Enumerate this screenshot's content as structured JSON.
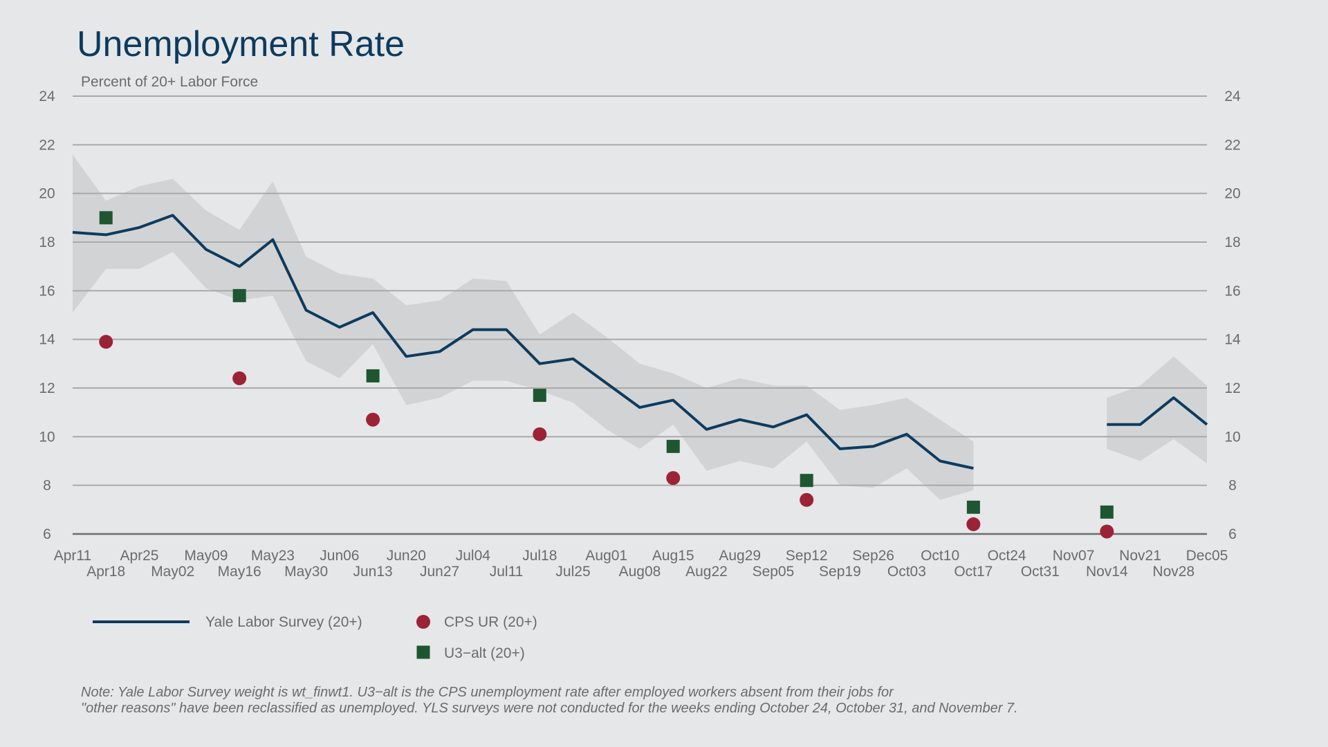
{
  "chart_data": {
    "type": "line",
    "title": "Unemployment Rate",
    "subtitle": "Percent of 20+ Labor Force",
    "ylim": [
      6,
      24
    ],
    "yticks": [
      6,
      8,
      10,
      12,
      14,
      16,
      18,
      20,
      22,
      24
    ],
    "grid": true,
    "x_dates": [
      "2020-04-11",
      "2020-04-18",
      "2020-04-25",
      "2020-05-02",
      "2020-05-09",
      "2020-05-16",
      "2020-05-23",
      "2020-05-30",
      "2020-06-06",
      "2020-06-13",
      "2020-06-20",
      "2020-06-27",
      "2020-07-04",
      "2020-07-11",
      "2020-07-18",
      "2020-07-25",
      "2020-08-01",
      "2020-08-08",
      "2020-08-15",
      "2020-08-22",
      "2020-08-29",
      "2020-09-05",
      "2020-09-12",
      "2020-09-19",
      "2020-09-26",
      "2020-10-03",
      "2020-10-10",
      "2020-10-17",
      "2020-10-24",
      "2020-10-31",
      "2020-11-07",
      "2020-11-14",
      "2020-11-21",
      "2020-11-28",
      "2020-12-05"
    ],
    "x_tick_labels": [
      "Apr11",
      "Apr18",
      "Apr25",
      "May02",
      "May09",
      "May16",
      "May23",
      "May30",
      "Jun06",
      "Jun13",
      "Jun20",
      "Jun27",
      "Jul04",
      "Jul11",
      "Jul18",
      "Jul25",
      "Aug01",
      "Aug08",
      "Aug15",
      "Aug22",
      "Aug29",
      "Sep05",
      "Sep12",
      "Sep19",
      "Sep26",
      "Oct03",
      "Oct10",
      "Oct17",
      "Oct24",
      "Oct31",
      "Nov07",
      "Nov14",
      "Nov21",
      "Nov28",
      "Dec05"
    ],
    "series": [
      {
        "name": "Yale Labor Survey (20+)",
        "color": "#0d3b5e",
        "marker": "line",
        "values": [
          18.4,
          18.3,
          18.6,
          19.1,
          17.7,
          17.0,
          18.1,
          15.2,
          14.5,
          15.1,
          13.3,
          13.5,
          14.4,
          14.4,
          13.0,
          13.2,
          12.2,
          11.2,
          11.5,
          10.3,
          10.7,
          10.4,
          10.9,
          9.5,
          9.6,
          10.1,
          9.0,
          8.7,
          null,
          null,
          null,
          10.5,
          10.5,
          11.6,
          10.5
        ],
        "band_upper": [
          21.6,
          19.7,
          20.3,
          20.6,
          19.3,
          18.5,
          20.5,
          17.4,
          16.7,
          16.5,
          15.4,
          15.6,
          16.5,
          16.4,
          14.2,
          15.1,
          14.1,
          13.0,
          12.6,
          12.0,
          12.4,
          12.1,
          12.1,
          11.1,
          11.3,
          11.6,
          10.7,
          9.8,
          null,
          null,
          null,
          11.6,
          12.1,
          13.3,
          12.1
        ],
        "band_lower": [
          15.1,
          16.9,
          16.9,
          17.6,
          16.1,
          15.6,
          15.8,
          13.1,
          12.4,
          13.8,
          11.3,
          11.6,
          12.3,
          12.3,
          11.9,
          11.4,
          10.3,
          9.5,
          10.5,
          8.6,
          9.0,
          8.7,
          9.8,
          8.0,
          7.9,
          8.7,
          7.4,
          7.8,
          null,
          null,
          null,
          9.5,
          9.0,
          9.9,
          8.9
        ]
      },
      {
        "name": "CPS UR (20+)",
        "color": "#9b2335",
        "marker": "circle",
        "points": [
          {
            "x": "2020-04-18",
            "y": 13.9
          },
          {
            "x": "2020-05-16",
            "y": 12.4
          },
          {
            "x": "2020-06-13",
            "y": 10.7
          },
          {
            "x": "2020-07-18",
            "y": 10.1
          },
          {
            "x": "2020-08-15",
            "y": 8.3
          },
          {
            "x": "2020-09-12",
            "y": 7.4
          },
          {
            "x": "2020-10-17",
            "y": 6.4
          },
          {
            "x": "2020-11-14",
            "y": 6.1
          }
        ]
      },
      {
        "name": "U3−alt (20+)",
        "color": "#1e5631",
        "marker": "square",
        "points": [
          {
            "x": "2020-04-18",
            "y": 19.0
          },
          {
            "x": "2020-05-16",
            "y": 15.8
          },
          {
            "x": "2020-06-13",
            "y": 12.5
          },
          {
            "x": "2020-07-18",
            "y": 11.7
          },
          {
            "x": "2020-08-15",
            "y": 9.6
          },
          {
            "x": "2020-09-12",
            "y": 8.2
          },
          {
            "x": "2020-10-17",
            "y": 7.1
          },
          {
            "x": "2020-11-14",
            "y": 6.9
          }
        ]
      }
    ],
    "legend_position": "bottom-left",
    "note_lines": [
      "Note: Yale Labor Survey weight is wt_finwt1. U3−alt is the CPS unemployment rate after employed workers absent from their jobs for",
      "\"other reasons\" have been reclassified as unemployed. YLS surveys were not conducted for the weeks ending October 24, October 31, and November 7."
    ]
  },
  "colors": {
    "background": "#e6e7e9",
    "band": "#d2d3d5",
    "grid": "#a9a9a9",
    "axis": "#6b6b6b",
    "title": "#0d3b5e"
  }
}
